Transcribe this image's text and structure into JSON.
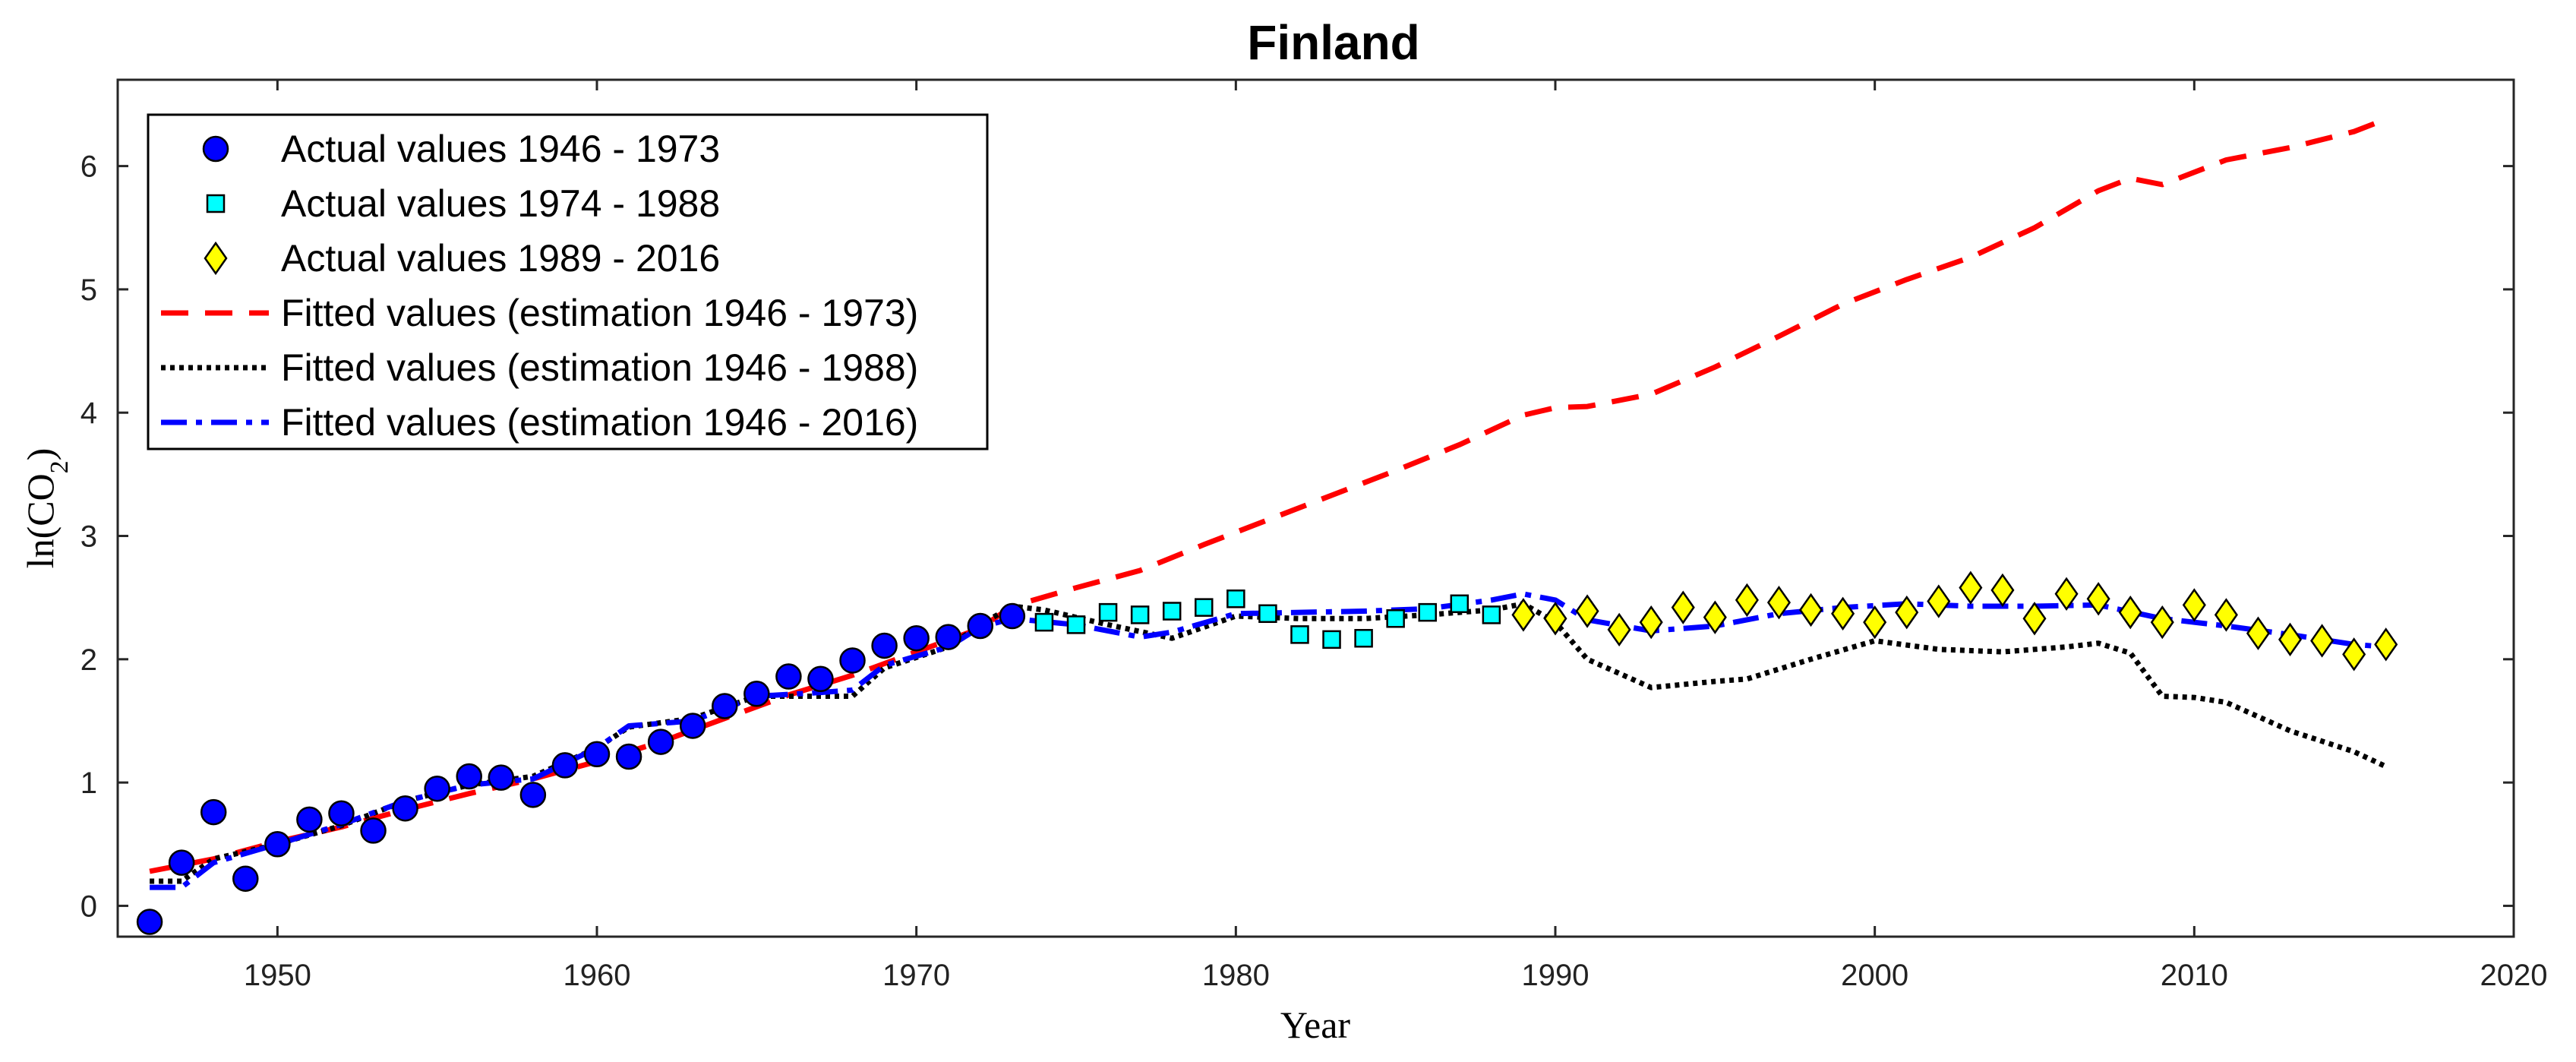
{
  "chart_data": {
    "type": "scatter",
    "title": "Finland",
    "xlabel": "Year",
    "ylabel": "ln(CO₂)",
    "ylabel_main": "ln(CO",
    "ylabel_sub": "2",
    "ylabel_close": ")",
    "xlim": [
      1945,
      2020
    ],
    "ylim": [
      -0.25,
      6.7
    ],
    "xticks": [
      1950,
      1960,
      1970,
      1980,
      1990,
      2000,
      2010,
      2020
    ],
    "yticks": [
      0,
      1,
      2,
      3,
      4,
      5,
      6
    ],
    "legend_position": "top-left",
    "series": [
      {
        "name": "Actual values 1946 - 1973",
        "kind": "marker",
        "marker": "circle",
        "color": "#0000ff",
        "edge": "#000000",
        "x": [
          1946,
          1947,
          1948,
          1949,
          1950,
          1951,
          1952,
          1953,
          1954,
          1955,
          1956,
          1957,
          1958,
          1959,
          1960,
          1961,
          1962,
          1963,
          1964,
          1965,
          1966,
          1967,
          1968,
          1969,
          1970,
          1971,
          1972,
          1973
        ],
        "y": [
          -0.13,
          0.35,
          0.76,
          0.22,
          0.5,
          0.7,
          0.75,
          0.61,
          0.79,
          0.95,
          1.05,
          1.04,
          0.9,
          1.14,
          1.23,
          1.21,
          1.33,
          1.46,
          1.62,
          1.72,
          1.86,
          1.84,
          1.99,
          2.11,
          2.17,
          2.18,
          2.27,
          2.35
        ]
      },
      {
        "name": "Actual values 1974 - 1988",
        "kind": "marker",
        "marker": "square",
        "color": "#00ffff",
        "edge": "#000000",
        "x": [
          1974,
          1975,
          1976,
          1977,
          1978,
          1979,
          1980,
          1981,
          1982,
          1983,
          1984,
          1985,
          1986,
          1987,
          1988
        ],
        "y": [
          2.3,
          2.28,
          2.38,
          2.36,
          2.39,
          2.42,
          2.49,
          2.37,
          2.2,
          2.16,
          2.17,
          2.33,
          2.38,
          2.45,
          2.36
        ]
      },
      {
        "name": "Actual values 1989 - 2016",
        "kind": "marker",
        "marker": "diamond",
        "color": "#ffff00",
        "edge": "#000000",
        "x": [
          1989,
          1990,
          1991,
          1992,
          1993,
          1994,
          1995,
          1996,
          1997,
          1998,
          1999,
          2000,
          2001,
          2002,
          2003,
          2004,
          2005,
          2006,
          2007,
          2008,
          2009,
          2010,
          2011,
          2012,
          2013,
          2014,
          2015,
          2016
        ],
        "y": [
          2.36,
          2.33,
          2.39,
          2.24,
          2.3,
          2.42,
          2.34,
          2.48,
          2.46,
          2.4,
          2.37,
          2.3,
          2.38,
          2.47,
          2.58,
          2.56,
          2.33,
          2.53,
          2.49,
          2.38,
          2.3,
          2.44,
          2.36,
          2.21,
          2.16,
          2.15,
          2.04,
          2.12
        ]
      },
      {
        "name": "Fitted values (estimation 1946 - 1973)",
        "kind": "line",
        "dash": "dashed",
        "color": "#ff0000",
        "x": [
          1946,
          1948,
          1950,
          1952,
          1954,
          1956,
          1958,
          1960,
          1962,
          1964,
          1966,
          1968,
          1970,
          1972,
          1973,
          1975,
          1977,
          1979,
          1981,
          1983,
          1985,
          1987,
          1989,
          1990,
          1991,
          1993,
          1995,
          1997,
          1999,
          2001,
          2003,
          2005,
          2007,
          2008,
          2009,
          2011,
          2013,
          2015,
          2016
        ],
        "y": [
          0.28,
          0.38,
          0.52,
          0.64,
          0.78,
          0.91,
          1.03,
          1.17,
          1.33,
          1.52,
          1.71,
          1.87,
          2.06,
          2.25,
          2.43,
          2.58,
          2.72,
          2.93,
          3.13,
          3.33,
          3.53,
          3.74,
          3.98,
          4.04,
          4.05,
          4.15,
          4.37,
          4.62,
          4.88,
          5.08,
          5.26,
          5.5,
          5.8,
          5.9,
          5.85,
          6.05,
          6.15,
          6.28,
          6.38
        ]
      },
      {
        "name": "Fitted values (estimation 1946 - 1988)",
        "kind": "line",
        "dash": "dotted",
        "color": "#000000",
        "x": [
          1946,
          1947,
          1948,
          1950,
          1952,
          1954,
          1956,
          1958,
          1960,
          1961,
          1963,
          1965,
          1967,
          1968,
          1969,
          1971,
          1972,
          1973,
          1974,
          1976,
          1978,
          1980,
          1982,
          1984,
          1986,
          1988,
          1989,
          1990,
          1991,
          1993,
          1995,
          1996,
          1998,
          2000,
          2002,
          2004,
          2006,
          2007,
          2008,
          2009,
          2010,
          2011,
          2013,
          2015,
          2016
        ],
        "y": [
          0.2,
          0.2,
          0.38,
          0.5,
          0.65,
          0.85,
          0.98,
          1.05,
          1.28,
          1.45,
          1.52,
          1.7,
          1.7,
          1.7,
          1.93,
          2.1,
          2.28,
          2.43,
          2.4,
          2.28,
          2.17,
          2.35,
          2.33,
          2.33,
          2.36,
          2.4,
          2.45,
          2.3,
          2.0,
          1.77,
          1.82,
          1.84,
          2.0,
          2.15,
          2.08,
          2.06,
          2.1,
          2.13,
          2.05,
          1.7,
          1.69,
          1.65,
          1.42,
          1.25,
          1.13
        ]
      },
      {
        "name": "Fitted values (estimation 1946 - 2016)",
        "kind": "line",
        "dash": "dashdot",
        "color": "#0000ff",
        "x": [
          1946,
          1947,
          1948,
          1950,
          1952,
          1954,
          1956,
          1958,
          1960,
          1961,
          1963,
          1965,
          1967,
          1968,
          1969,
          1971,
          1972,
          1973,
          1975,
          1977,
          1978,
          1980,
          1982,
          1984,
          1986,
          1988,
          1989,
          1990,
          1991,
          1993,
          1995,
          1997,
          1999,
          2001,
          2003,
          2005,
          2007,
          2009,
          2011,
          2013,
          2015,
          2016
        ],
        "y": [
          0.15,
          0.15,
          0.35,
          0.5,
          0.66,
          0.85,
          0.98,
          1.03,
          1.28,
          1.46,
          1.5,
          1.7,
          1.73,
          1.75,
          1.95,
          2.1,
          2.26,
          2.33,
          2.28,
          2.18,
          2.22,
          2.37,
          2.38,
          2.39,
          2.41,
          2.48,
          2.53,
          2.48,
          2.32,
          2.23,
          2.27,
          2.37,
          2.42,
          2.45,
          2.43,
          2.43,
          2.44,
          2.33,
          2.27,
          2.2,
          2.12,
          2.1
        ]
      }
    ]
  }
}
